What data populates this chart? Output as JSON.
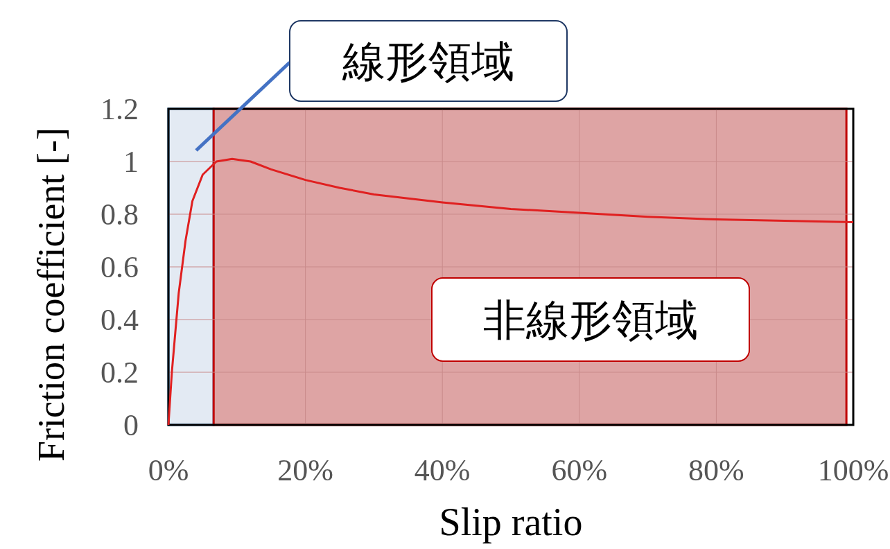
{
  "chart_data": {
    "type": "line",
    "xlabel": "Slip ratio",
    "ylabel": "Friction coefficient [-]",
    "xlim": [
      0,
      100
    ],
    "ylim": [
      0,
      1.2
    ],
    "xticks": [
      {
        "value": 0,
        "label": "0%"
      },
      {
        "value": 20,
        "label": "20%"
      },
      {
        "value": 40,
        "label": "40%"
      },
      {
        "value": 60,
        "label": "60%"
      },
      {
        "value": 80,
        "label": "80%"
      },
      {
        "value": 100,
        "label": "100%"
      }
    ],
    "yticks": [
      0,
      0.2,
      0.4,
      0.6,
      0.8,
      1,
      1.2
    ],
    "grid": true,
    "marker": "none",
    "line_style": "solid",
    "series": [
      {
        "color": "#e02020",
        "x": [
          0,
          0.5,
          1,
          1.5,
          2.5,
          3.5,
          5,
          7,
          9.3,
          12,
          15,
          20,
          25,
          30,
          40,
          50,
          60,
          70,
          80,
          90,
          100
        ],
        "values": [
          0,
          0.2,
          0.35,
          0.5,
          0.7,
          0.85,
          0.95,
          1.0,
          1.01,
          1.0,
          0.97,
          0.93,
          0.9,
          0.875,
          0.845,
          0.82,
          0.805,
          0.79,
          0.78,
          0.775,
          0.77
        ]
      }
    ],
    "bands": [
      {
        "axis": "x",
        "from": 0,
        "to": 6.6,
        "label": "線形領域",
        "color": "#e3eaf3"
      },
      {
        "axis": "x",
        "from": 6.6,
        "to": 99,
        "label": "非線形領域",
        "color": "#dea4a4"
      }
    ]
  }
}
